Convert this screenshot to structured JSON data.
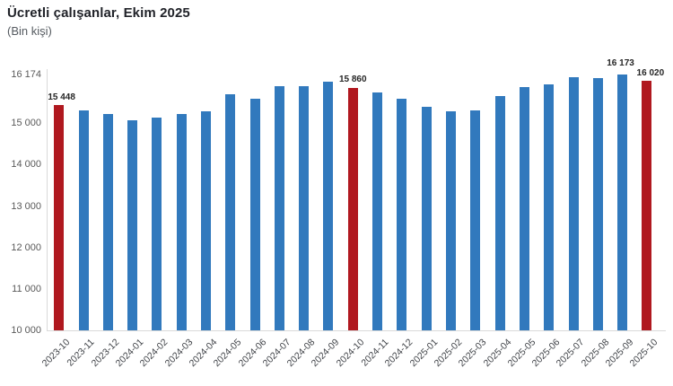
{
  "page": {
    "title": "Ücretli çalışanlar, Ekim 2025",
    "subtitle": "(Bin kişi)"
  },
  "chart_data": {
    "type": "bar",
    "title": "Ücretli çalışanlar, Ekim 2025",
    "subtitle": "(Bin kişi)",
    "categories": [
      "2023-10",
      "2023-11",
      "2023-12",
      "2024-01",
      "2024-02",
      "2024-03",
      "2024-04",
      "2024-05",
      "2024-06",
      "2024-07",
      "2024-08",
      "2024-09",
      "2024-10",
      "2024-11",
      "2024-12",
      "2025-01",
      "2025-02",
      "2025-03",
      "2025-04",
      "2025-05",
      "2025-06",
      "2025-07",
      "2025-08",
      "2025-09",
      "2025-10"
    ],
    "values": [
      15448,
      15300,
      15220,
      15070,
      15140,
      15230,
      15290,
      15690,
      15590,
      15900,
      15890,
      16000,
      15860,
      15740,
      15580,
      15400,
      15290,
      15300,
      15650,
      15880,
      15940,
      16120,
      16090,
      16173,
      16020
    ],
    "highlighted_categories": [
      "2023-10",
      "2024-10",
      "2025-10"
    ],
    "data_labels": {
      "2023-10": "15 448",
      "2024-10": "15 860",
      "2025-09": "16 173",
      "2025-10": "16 020"
    },
    "colors": {
      "bar": "#3179BD",
      "highlight": "#B0181F",
      "axis": "#d9d9d9",
      "axis_text": "#595959"
    },
    "ylim": [
      10000,
      16174
    ],
    "yticks": [
      10000,
      11000,
      12000,
      13000,
      14000,
      15000,
      16174
    ],
    "ytick_labels": [
      "10 000",
      "11 000",
      "12 000",
      "13 000",
      "14 000",
      "15 000",
      "16 174"
    ],
    "xlabel": "",
    "ylabel": "",
    "grid": false,
    "legend": "none"
  }
}
